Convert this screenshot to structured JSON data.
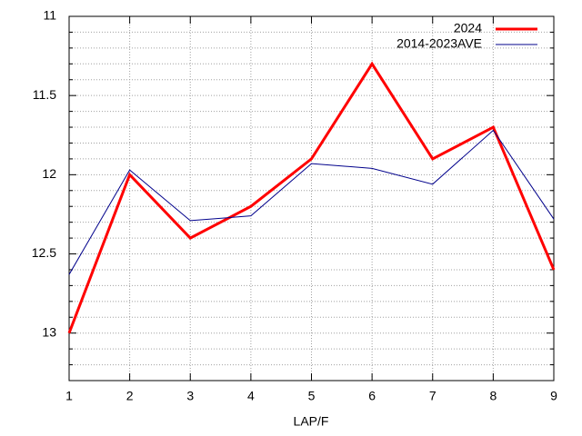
{
  "chart_data": {
    "type": "line",
    "x_label": "LAP/F",
    "x": [
      1,
      2,
      3,
      4,
      5,
      6,
      7,
      8,
      9
    ],
    "xlim": [
      1,
      9
    ],
    "xticks": [
      1,
      2,
      3,
      4,
      5,
      6,
      7,
      8,
      9
    ],
    "ylim": [
      11,
      13.3
    ],
    "y_reversed": true,
    "yticks": [
      11,
      11.5,
      12,
      12.5,
      13
    ],
    "yminorticks": [
      11.1,
      11.2,
      11.3,
      11.4,
      11.6,
      11.7,
      11.8,
      11.9,
      12.1,
      12.2,
      12.3,
      12.4,
      12.6,
      12.7,
      12.8,
      12.9,
      13.1,
      13.2
    ],
    "grid": true,
    "legend_position": "top-right",
    "series": [
      {
        "name": "2024",
        "color": "#ff0000",
        "line_width": 3,
        "values": [
          13.0,
          12.0,
          12.4,
          12.2,
          11.9,
          11.3,
          11.9,
          11.7,
          12.6
        ]
      },
      {
        "name": "2014-2023AVE",
        "color": "#00008b",
        "line_width": 1,
        "values": [
          12.63,
          11.97,
          12.29,
          12.26,
          11.93,
          11.96,
          12.06,
          11.72,
          12.28
        ]
      }
    ]
  }
}
